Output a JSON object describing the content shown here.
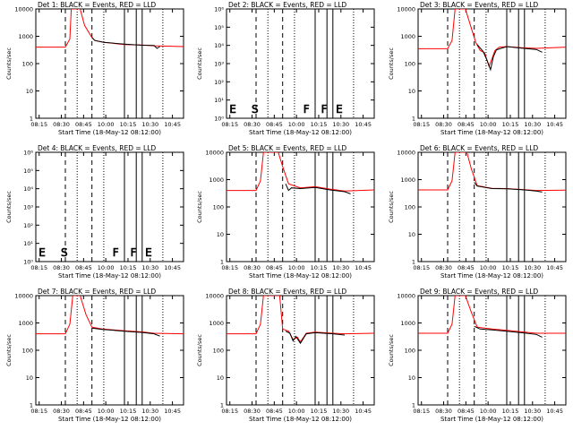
{
  "figure": {
    "xlabel": "Start Time (18-May-12 08:12:00)",
    "ylabel": "Counts/sec",
    "x_ticks": [
      "08:15",
      "08:30",
      "08:45",
      "10:00",
      "10:15",
      "10:30",
      "10:45"
    ],
    "colors": {
      "events": "#000000",
      "lld": "#ff0000",
      "axes": "#000000"
    }
  },
  "chart_data": [
    {
      "type": "line",
      "panel": "det1",
      "title": "Det 1: BLACK = Events, RED = LLD",
      "ylog": true,
      "ylim": [
        1,
        10000
      ],
      "y_ticks": [
        "1",
        "10",
        "100",
        "1000",
        "10000"
      ],
      "dashed_x": [
        0.2,
        0.38
      ],
      "dotted_x": [
        0.28,
        0.46,
        0.86
      ],
      "solid_x": [
        0.6,
        0.68,
        0.72
      ],
      "letters": [],
      "series": [
        {
          "role": "lld",
          "points": [
            [
              0,
              400
            ],
            [
              0.2,
              400
            ],
            [
              0.23,
              800
            ],
            [
              0.24,
              10000
            ],
            [
              0.3,
              10000
            ],
            [
              0.33,
              2500
            ],
            [
              0.38,
              900
            ],
            [
              0.4,
              700
            ],
            [
              0.46,
              600
            ],
            [
              0.6,
              500
            ],
            [
              0.72,
              480
            ],
            [
              0.8,
              450
            ],
            [
              1,
              420
            ]
          ]
        },
        {
          "role": "events",
          "points": [
            [
              0.38,
              900
            ],
            [
              0.4,
              700
            ],
            [
              0.46,
              600
            ],
            [
              0.6,
              520
            ],
            [
              0.72,
              470
            ],
            [
              0.8,
              460
            ],
            [
              0.82,
              360
            ],
            [
              0.84,
              420
            ]
          ]
        }
      ]
    },
    {
      "type": "line",
      "panel": "det2",
      "title": "Det 2: BLACK = Events, RED = LLD",
      "ylog": true,
      "ylim": [
        1,
        1000000
      ],
      "y_ticks": [
        "10⁰",
        "10¹",
        "10²",
        "10³",
        "10⁴",
        "10⁵",
        "10⁶"
      ],
      "dashed_x": [
        0.2,
        0.38
      ],
      "dotted_x": [
        0.28,
        0.46,
        0.86
      ],
      "solid_x": [
        0.6,
        0.68,
        0.72
      ],
      "letters": [
        "E",
        "S",
        "F",
        "F",
        "E"
      ],
      "series": []
    },
    {
      "type": "line",
      "panel": "det3",
      "title": "Det 3: BLACK = Events, RED = LLD",
      "ylog": true,
      "ylim": [
        1,
        10000
      ],
      "y_ticks": [
        "1",
        "10",
        "100",
        "1000",
        "10000"
      ],
      "dashed_x": [
        0.2,
        0.38
      ],
      "dotted_x": [
        0.28,
        0.46,
        0.86
      ],
      "solid_x": [
        0.6,
        0.68,
        0.72
      ],
      "letters": [],
      "series": [
        {
          "role": "lld",
          "points": [
            [
              0,
              350
            ],
            [
              0.2,
              350
            ],
            [
              0.23,
              700
            ],
            [
              0.25,
              10000
            ],
            [
              0.32,
              10000
            ],
            [
              0.36,
              2000
            ],
            [
              0.39,
              600
            ],
            [
              0.42,
              300
            ],
            [
              0.45,
              250
            ],
            [
              0.48,
              80
            ],
            [
              0.5,
              150
            ],
            [
              0.52,
              300
            ],
            [
              0.55,
              400
            ],
            [
              0.6,
              420
            ],
            [
              0.7,
              380
            ],
            [
              0.8,
              360
            ],
            [
              1,
              400
            ]
          ]
        },
        {
          "role": "events",
          "points": [
            [
              0.4,
              500
            ],
            [
              0.44,
              280
            ],
            [
              0.47,
              120
            ],
            [
              0.49,
              60
            ],
            [
              0.51,
              180
            ],
            [
              0.53,
              320
            ],
            [
              0.6,
              420
            ],
            [
              0.7,
              370
            ],
            [
              0.8,
              330
            ],
            [
              0.84,
              260
            ]
          ]
        }
      ]
    },
    {
      "type": "line",
      "panel": "det4",
      "title": "Det 4: BLACK = Events, RED = LLD",
      "ylog": true,
      "ylim": [
        1,
        1000000
      ],
      "y_ticks": [
        "10⁰",
        "10¹",
        "10²",
        "10³",
        "10⁴",
        "10⁵",
        "10⁶"
      ],
      "dashed_x": [
        0.2,
        0.38
      ],
      "dotted_x": [
        0.28,
        0.46,
        0.86
      ],
      "solid_x": [
        0.6,
        0.68,
        0.72
      ],
      "letters": [
        "E",
        "S",
        "F",
        "F",
        "E"
      ],
      "series": []
    },
    {
      "type": "line",
      "panel": "det5",
      "title": "Det 5: BLACK = Events, RED = LLD",
      "ylog": true,
      "ylim": [
        1,
        10000
      ],
      "y_ticks": [
        "1",
        "10",
        "100",
        "1000",
        "10000"
      ],
      "dashed_x": [
        0.2,
        0.38
      ],
      "dotted_x": [
        0.28,
        0.46,
        0.86
      ],
      "solid_x": [
        0.6,
        0.68,
        0.72
      ],
      "letters": [],
      "series": [
        {
          "role": "lld",
          "points": [
            [
              0,
              400
            ],
            [
              0.2,
              400
            ],
            [
              0.23,
              900
            ],
            [
              0.25,
              10000
            ],
            [
              0.35,
              10000
            ],
            [
              0.38,
              3000
            ],
            [
              0.42,
              700
            ],
            [
              0.5,
              500
            ],
            [
              0.6,
              550
            ],
            [
              0.7,
              450
            ],
            [
              0.8,
              380
            ],
            [
              1,
              420
            ]
          ]
        },
        {
          "role": "events",
          "points": [
            [
              0.4,
              700
            ],
            [
              0.42,
              400
            ],
            [
              0.44,
              500
            ],
            [
              0.5,
              470
            ],
            [
              0.6,
              520
            ],
            [
              0.7,
              420
            ],
            [
              0.8,
              360
            ],
            [
              0.84,
              300
            ]
          ]
        }
      ]
    },
    {
      "type": "line",
      "panel": "det6",
      "title": "Det 6: BLACK = Events, RED = LLD",
      "ylog": true,
      "ylim": [
        1,
        10000
      ],
      "y_ticks": [
        "1",
        "10",
        "100",
        "1000",
        "10000"
      ],
      "dashed_x": [
        0.2,
        0.38
      ],
      "dotted_x": [
        0.28,
        0.46,
        0.86
      ],
      "solid_x": [
        0.6,
        0.68,
        0.72
      ],
      "letters": [],
      "series": [
        {
          "role": "lld",
          "points": [
            [
              0,
              420
            ],
            [
              0.2,
              420
            ],
            [
              0.23,
              900
            ],
            [
              0.25,
              10000
            ],
            [
              0.33,
              10000
            ],
            [
              0.36,
              2500
            ],
            [
              0.4,
              600
            ],
            [
              0.5,
              480
            ],
            [
              0.6,
              470
            ],
            [
              0.72,
              430
            ],
            [
              0.8,
              400
            ],
            [
              1,
              410
            ]
          ]
        },
        {
          "role": "events",
          "points": [
            [
              0.38,
              800
            ],
            [
              0.4,
              580
            ],
            [
              0.5,
              470
            ],
            [
              0.6,
              460
            ],
            [
              0.72,
              420
            ],
            [
              0.8,
              380
            ],
            [
              0.84,
              350
            ]
          ]
        }
      ]
    },
    {
      "type": "line",
      "panel": "det7",
      "title": "Det 7: BLACK = Events, RED = LLD",
      "ylog": true,
      "ylim": [
        1,
        10000
      ],
      "y_ticks": [
        "1",
        "10",
        "100",
        "1000",
        "10000"
      ],
      "dashed_x": [
        0.2,
        0.38
      ],
      "dotted_x": [
        0.28,
        0.46,
        0.86
      ],
      "solid_x": [
        0.6,
        0.68,
        0.72
      ],
      "letters": [],
      "series": [
        {
          "role": "lld",
          "points": [
            [
              0,
              400
            ],
            [
              0.2,
              400
            ],
            [
              0.23,
              900
            ],
            [
              0.25,
              10000
            ],
            [
              0.3,
              10000
            ],
            [
              0.34,
              2000
            ],
            [
              0.38,
              700
            ],
            [
              0.45,
              600
            ],
            [
              0.6,
              520
            ],
            [
              0.72,
              470
            ],
            [
              0.8,
              420
            ],
            [
              1,
              400
            ]
          ]
        },
        {
          "role": "events",
          "points": [
            [
              0.38,
              650
            ],
            [
              0.45,
              580
            ],
            [
              0.6,
              500
            ],
            [
              0.72,
              450
            ],
            [
              0.8,
              400
            ],
            [
              0.84,
              330
            ]
          ]
        }
      ]
    },
    {
      "type": "line",
      "panel": "det8",
      "title": "Det 8: BLACK = Events, RED = LLD",
      "ylog": true,
      "ylim": [
        1,
        10000
      ],
      "y_ticks": [
        "1",
        "10",
        "100",
        "1000",
        "10000"
      ],
      "dashed_x": [
        0.2,
        0.38
      ],
      "dotted_x": [
        0.28,
        0.46,
        0.86
      ],
      "solid_x": [
        0.6,
        0.68,
        0.72
      ],
      "letters": [],
      "series": [
        {
          "role": "lld",
          "points": [
            [
              0,
              400
            ],
            [
              0.2,
              400
            ],
            [
              0.23,
              900
            ],
            [
              0.25,
              10000
            ],
            [
              0.36,
              10000
            ],
            [
              0.38,
              600
            ],
            [
              0.42,
              500
            ],
            [
              0.45,
              250
            ],
            [
              0.48,
              300
            ],
            [
              0.5,
              200
            ],
            [
              0.54,
              420
            ],
            [
              0.6,
              460
            ],
            [
              0.72,
              420
            ],
            [
              0.8,
              400
            ],
            [
              1,
              420
            ]
          ]
        },
        {
          "role": "events",
          "points": [
            [
              0.4,
              500
            ],
            [
              0.43,
              420
            ],
            [
              0.45,
              220
            ],
            [
              0.47,
              320
            ],
            [
              0.5,
              180
            ],
            [
              0.54,
              400
            ],
            [
              0.6,
              440
            ],
            [
              0.72,
              400
            ],
            [
              0.8,
              360
            ]
          ]
        }
      ]
    },
    {
      "type": "line",
      "panel": "det9",
      "title": "Det 9: BLACK = Events, RED = LLD",
      "ylog": true,
      "ylim": [
        1,
        10000
      ],
      "y_ticks": [
        "1",
        "10",
        "100",
        "1000",
        "10000"
      ],
      "dashed_x": [
        0.2,
        0.38
      ],
      "dotted_x": [
        0.28,
        0.46,
        0.86
      ],
      "solid_x": [
        0.6,
        0.68,
        0.72
      ],
      "letters": [],
      "series": [
        {
          "role": "lld",
          "points": [
            [
              0,
              420
            ],
            [
              0.2,
              420
            ],
            [
              0.23,
              900
            ],
            [
              0.25,
              10000
            ],
            [
              0.32,
              10000
            ],
            [
              0.36,
              2500
            ],
            [
              0.4,
              700
            ],
            [
              0.5,
              600
            ],
            [
              0.6,
              540
            ],
            [
              0.72,
              460
            ],
            [
              0.8,
              420
            ],
            [
              1,
              420
            ]
          ]
        },
        {
          "role": "events",
          "points": [
            [
              0.38,
              750
            ],
            [
              0.42,
              600
            ],
            [
              0.5,
              560
            ],
            [
              0.6,
              500
            ],
            [
              0.72,
              430
            ],
            [
              0.8,
              380
            ],
            [
              0.84,
              300
            ]
          ]
        }
      ]
    }
  ]
}
